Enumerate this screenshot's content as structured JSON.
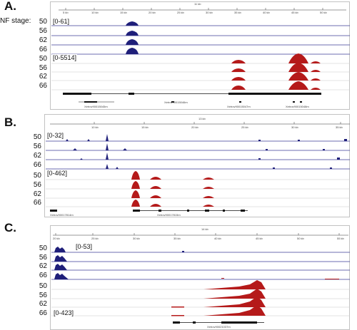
{
  "side_label": "NF stage:",
  "panels": [
    {
      "label": "A.",
      "scale_text": "11 kb",
      "ticks": [
        "5 kb",
        "10 kb",
        "15 kb",
        "20 kb",
        "25 kb",
        "30 kb",
        "35 kb",
        "40 kb",
        "45 kb",
        "50 kb"
      ],
      "blue_range": "[0-61]",
      "red_range": "[0-5514]",
      "stages": [
        "50",
        "56",
        "62",
        "66"
      ],
      "gene_labels": [
        "Xetrov90015045m",
        "Xetrov90015046m",
        "Xetrov90015047m",
        "Xetrov90015048m"
      ]
    },
    {
      "label": "B.",
      "scale_text": "13 kb",
      "ticks": [
        "10 kb",
        "15 kb",
        "20 kb",
        "25 kb",
        "30 kb",
        "35 kb"
      ],
      "blue_range": "[0-32]",
      "red_range": "[0-462]",
      "stages": [
        "50",
        "56",
        "62",
        "66"
      ],
      "gene_labels": [
        "Xetrov90017814m",
        "Xetrov90017815m"
      ]
    },
    {
      "label": "C.",
      "scale_text": "14 kb",
      "ticks": [
        "20 kb",
        "25 kb",
        "30 kb",
        "35 kb",
        "40 kb",
        "45 kb",
        "50 kb",
        "55 kb"
      ],
      "blue_range": "[0-53]",
      "red_range": "[0-423]",
      "stages": [
        "50",
        "56",
        "62",
        "66"
      ],
      "gene_labels": [
        "Xetrov90021037m"
      ]
    }
  ],
  "colors": {
    "blue": "#1f1f7a",
    "red": "#b51a1a",
    "line": "#3b3b99",
    "grid": "#bbbbbb"
  }
}
